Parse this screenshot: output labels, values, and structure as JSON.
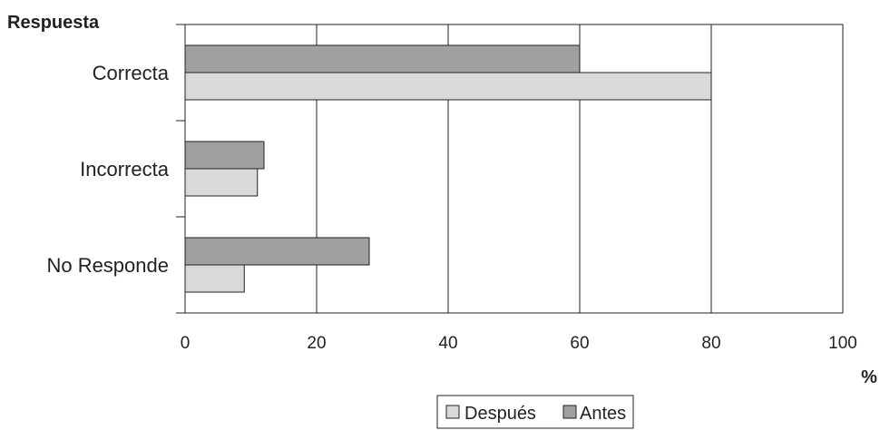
{
  "chart_data": {
    "type": "bar",
    "orientation": "horizontal",
    "ylabel": "Respuesta",
    "xlabel": "%",
    "categories": [
      "Correcta",
      "Incorrecta",
      "No Responde"
    ],
    "series": [
      {
        "name": "Antes",
        "values": [
          60,
          12,
          28
        ],
        "color": "#a0a0a0"
      },
      {
        "name": "Después",
        "values": [
          80,
          11,
          9
        ],
        "color": "#d9d9d9"
      }
    ],
    "xlim": [
      0,
      100
    ],
    "xticks": [
      "0",
      "20",
      "40",
      "60",
      "80",
      "100"
    ],
    "grid": "vertical",
    "legend": {
      "placement": "bottom",
      "entries": [
        "Después",
        "Antes"
      ]
    }
  }
}
